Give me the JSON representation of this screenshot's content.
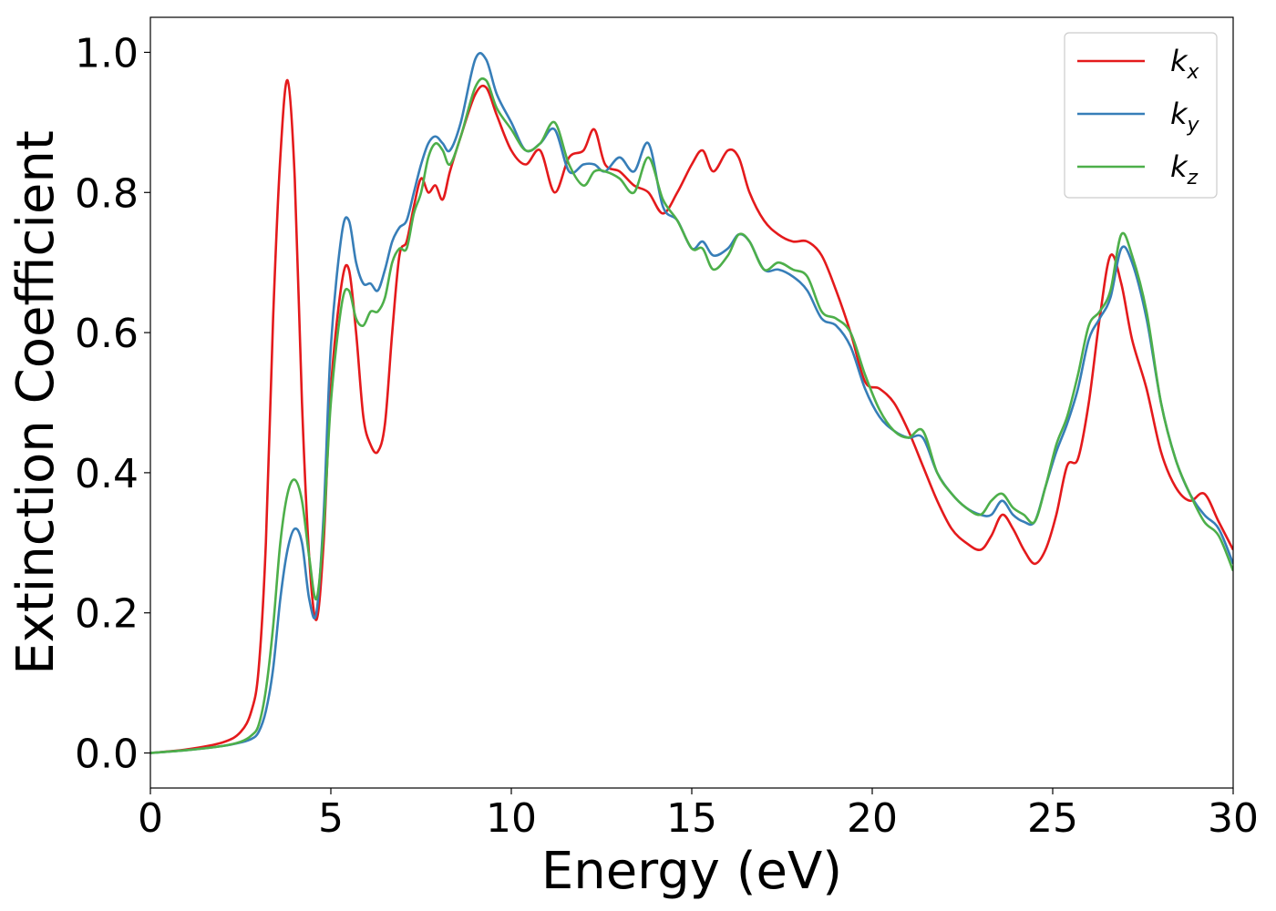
{
  "chart_data": {
    "type": "line",
    "xlabel": "Energy (eV)",
    "ylabel": "Extinction Coefficient",
    "xlim": [
      0,
      30
    ],
    "ylim": [
      -0.05,
      1.05
    ],
    "xticks": [
      "0",
      "5",
      "10",
      "15",
      "20",
      "25",
      "30"
    ],
    "yticks": [
      "0.0",
      "0.2",
      "0.4",
      "0.6",
      "0.8",
      "1.0"
    ],
    "grid": false,
    "legend_position": "top-right",
    "series": [
      {
        "name": "k_x",
        "label_main": "k",
        "label_sub": "x",
        "color": "#e41a1c",
        "x": [
          0,
          1,
          2,
          2.5,
          2.8,
          3.0,
          3.2,
          3.4,
          3.6,
          3.8,
          4.0,
          4.2,
          4.4,
          4.6,
          4.8,
          5.0,
          5.3,
          5.5,
          5.7,
          5.9,
          6.1,
          6.3,
          6.5,
          6.7,
          6.9,
          7.1,
          7.3,
          7.5,
          7.7,
          7.9,
          8.1,
          8.3,
          8.6,
          9.0,
          9.3,
          9.6,
          10.0,
          10.4,
          10.8,
          11.2,
          11.6,
          12.0,
          12.3,
          12.6,
          13.0,
          13.4,
          13.8,
          14.2,
          14.6,
          15.0,
          15.3,
          15.6,
          16.0,
          16.3,
          16.6,
          17.0,
          17.4,
          17.8,
          18.2,
          18.6,
          19.0,
          19.4,
          19.8,
          20.2,
          20.6,
          21.0,
          21.4,
          21.8,
          22.2,
          22.6,
          23.0,
          23.3,
          23.6,
          23.9,
          24.2,
          24.5,
          24.8,
          25.1,
          25.4,
          25.7,
          26.0,
          26.3,
          26.6,
          26.9,
          27.2,
          27.6,
          28.0,
          28.4,
          28.8,
          29.2,
          29.6,
          30.0
        ],
        "y": [
          0.0,
          0.005,
          0.015,
          0.03,
          0.06,
          0.12,
          0.3,
          0.62,
          0.85,
          0.96,
          0.82,
          0.5,
          0.28,
          0.19,
          0.3,
          0.52,
          0.67,
          0.69,
          0.6,
          0.48,
          0.44,
          0.43,
          0.47,
          0.6,
          0.71,
          0.73,
          0.78,
          0.82,
          0.8,
          0.81,
          0.79,
          0.83,
          0.88,
          0.94,
          0.95,
          0.91,
          0.86,
          0.84,
          0.86,
          0.8,
          0.85,
          0.86,
          0.89,
          0.84,
          0.83,
          0.81,
          0.8,
          0.77,
          0.8,
          0.84,
          0.86,
          0.83,
          0.86,
          0.85,
          0.8,
          0.76,
          0.74,
          0.73,
          0.73,
          0.71,
          0.66,
          0.6,
          0.53,
          0.52,
          0.5,
          0.46,
          0.41,
          0.36,
          0.32,
          0.3,
          0.29,
          0.31,
          0.34,
          0.32,
          0.29,
          0.27,
          0.29,
          0.34,
          0.41,
          0.42,
          0.5,
          0.62,
          0.71,
          0.67,
          0.59,
          0.52,
          0.43,
          0.38,
          0.36,
          0.37,
          0.33,
          0.29
        ]
      },
      {
        "name": "k_y",
        "label_main": "k",
        "label_sub": "y",
        "color": "#377eb8",
        "x": [
          0,
          1,
          2,
          2.5,
          2.8,
          3.0,
          3.2,
          3.4,
          3.6,
          3.8,
          4.0,
          4.2,
          4.4,
          4.6,
          4.8,
          5.0,
          5.3,
          5.5,
          5.7,
          5.9,
          6.1,
          6.3,
          6.5,
          6.7,
          6.9,
          7.1,
          7.3,
          7.5,
          7.7,
          7.9,
          8.1,
          8.3,
          8.6,
          9.0,
          9.3,
          9.6,
          10.0,
          10.4,
          10.8,
          11.2,
          11.6,
          12.0,
          12.3,
          12.6,
          13.0,
          13.4,
          13.8,
          14.2,
          14.6,
          15.0,
          15.3,
          15.6,
          16.0,
          16.3,
          16.6,
          17.0,
          17.4,
          17.8,
          18.2,
          18.6,
          19.0,
          19.4,
          19.8,
          20.2,
          20.6,
          21.0,
          21.4,
          21.8,
          22.2,
          22.6,
          23.0,
          23.3,
          23.6,
          23.9,
          24.2,
          24.5,
          24.8,
          25.1,
          25.4,
          25.7,
          26.0,
          26.3,
          26.6,
          26.9,
          27.2,
          27.6,
          28.0,
          28.4,
          28.8,
          29.2,
          29.6,
          30.0
        ],
        "y": [
          0.0,
          0.004,
          0.01,
          0.015,
          0.02,
          0.03,
          0.06,
          0.12,
          0.22,
          0.29,
          0.32,
          0.3,
          0.22,
          0.2,
          0.34,
          0.58,
          0.74,
          0.76,
          0.7,
          0.67,
          0.67,
          0.66,
          0.69,
          0.73,
          0.75,
          0.76,
          0.8,
          0.84,
          0.87,
          0.88,
          0.87,
          0.86,
          0.9,
          0.99,
          0.99,
          0.94,
          0.9,
          0.86,
          0.87,
          0.89,
          0.83,
          0.84,
          0.84,
          0.83,
          0.85,
          0.83,
          0.87,
          0.78,
          0.76,
          0.72,
          0.73,
          0.71,
          0.72,
          0.74,
          0.73,
          0.69,
          0.69,
          0.68,
          0.66,
          0.62,
          0.61,
          0.58,
          0.52,
          0.48,
          0.46,
          0.45,
          0.45,
          0.4,
          0.37,
          0.35,
          0.34,
          0.34,
          0.36,
          0.34,
          0.33,
          0.33,
          0.38,
          0.43,
          0.47,
          0.52,
          0.59,
          0.62,
          0.65,
          0.72,
          0.7,
          0.62,
          0.5,
          0.42,
          0.37,
          0.34,
          0.32,
          0.27
        ]
      },
      {
        "name": "k_z",
        "label_main": "k",
        "label_sub": "z",
        "color": "#4daf4a",
        "x": [
          0,
          1,
          2,
          2.5,
          2.8,
          3.0,
          3.2,
          3.4,
          3.6,
          3.8,
          4.0,
          4.2,
          4.4,
          4.6,
          4.8,
          5.0,
          5.3,
          5.5,
          5.7,
          5.9,
          6.1,
          6.3,
          6.5,
          6.7,
          6.9,
          7.1,
          7.3,
          7.5,
          7.7,
          7.9,
          8.1,
          8.3,
          8.6,
          9.0,
          9.3,
          9.6,
          10.0,
          10.4,
          10.8,
          11.2,
          11.6,
          12.0,
          12.3,
          12.6,
          13.0,
          13.4,
          13.8,
          14.2,
          14.6,
          15.0,
          15.3,
          15.6,
          16.0,
          16.3,
          16.6,
          17.0,
          17.4,
          17.8,
          18.2,
          18.6,
          19.0,
          19.4,
          19.8,
          20.2,
          20.6,
          21.0,
          21.4,
          21.8,
          22.2,
          22.6,
          23.0,
          23.3,
          23.6,
          23.9,
          24.2,
          24.5,
          24.8,
          25.1,
          25.4,
          25.7,
          26.0,
          26.3,
          26.6,
          26.9,
          27.2,
          27.6,
          28.0,
          28.4,
          28.8,
          29.2,
          29.6,
          30.0
        ],
        "y": [
          0.0,
          0.004,
          0.01,
          0.016,
          0.025,
          0.04,
          0.09,
          0.18,
          0.3,
          0.37,
          0.39,
          0.36,
          0.28,
          0.22,
          0.32,
          0.5,
          0.64,
          0.66,
          0.62,
          0.61,
          0.63,
          0.63,
          0.65,
          0.7,
          0.72,
          0.72,
          0.77,
          0.8,
          0.85,
          0.87,
          0.86,
          0.84,
          0.88,
          0.95,
          0.96,
          0.92,
          0.89,
          0.86,
          0.87,
          0.9,
          0.84,
          0.81,
          0.83,
          0.83,
          0.82,
          0.8,
          0.85,
          0.79,
          0.76,
          0.72,
          0.72,
          0.69,
          0.71,
          0.74,
          0.73,
          0.69,
          0.7,
          0.69,
          0.68,
          0.63,
          0.62,
          0.6,
          0.54,
          0.49,
          0.46,
          0.45,
          0.46,
          0.4,
          0.37,
          0.35,
          0.34,
          0.36,
          0.37,
          0.35,
          0.34,
          0.33,
          0.38,
          0.44,
          0.48,
          0.54,
          0.61,
          0.63,
          0.66,
          0.74,
          0.71,
          0.63,
          0.5,
          0.42,
          0.37,
          0.33,
          0.31,
          0.26
        ]
      }
    ]
  }
}
